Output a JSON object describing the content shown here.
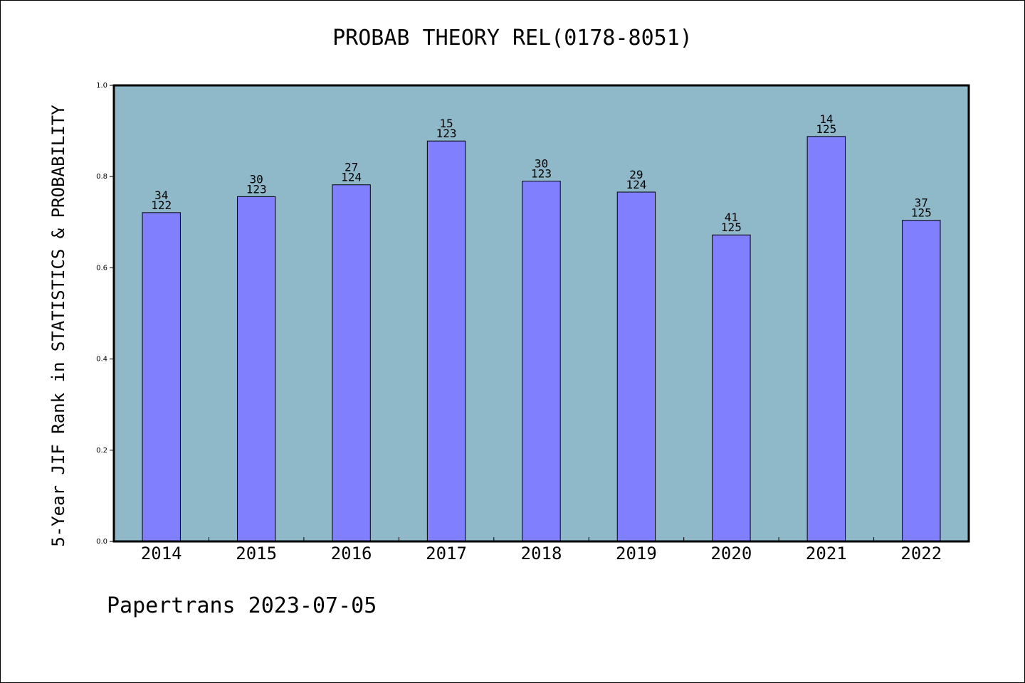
{
  "chart_data": {
    "type": "bar",
    "title": "PROBAB THEORY REL(0178-8051)",
    "ylabel": "5-Year JIF Rank in STATISTICS & PROBABILITY",
    "xlabel": "",
    "categories": [
      "2014",
      "2015",
      "2016",
      "2017",
      "2018",
      "2019",
      "2020",
      "2021",
      "2022"
    ],
    "values": [
      0.721,
      0.756,
      0.782,
      0.878,
      0.79,
      0.766,
      0.672,
      0.888,
      0.704
    ],
    "ranks": [
      "34",
      "30",
      "27",
      "15",
      "30",
      "29",
      "41",
      "14",
      "37"
    ],
    "totals": [
      "122",
      "123",
      "124",
      "123",
      "123",
      "124",
      "125",
      "125",
      "125"
    ],
    "ylim": [
      0,
      1.0
    ],
    "yticks": [
      "0.0",
      "0.2",
      "0.4",
      "0.6",
      "0.8",
      "1.0"
    ],
    "grid": false,
    "legend": "none",
    "colors": {
      "plot_background": "#8fb8c8",
      "bar": "#8080ff",
      "bar_edge": "#000000"
    }
  },
  "footer": "Papertrans 2023-07-05"
}
